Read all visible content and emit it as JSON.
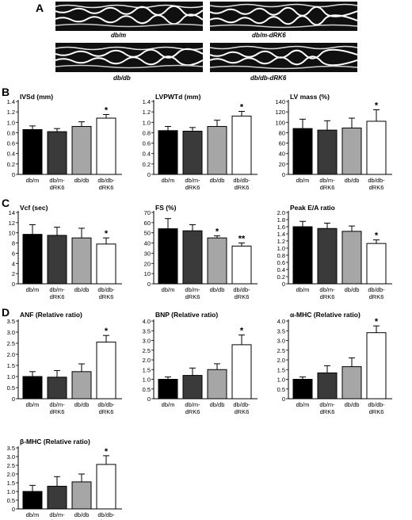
{
  "panel_labels": {
    "a": "A",
    "b": "B",
    "c": "C",
    "d": "D"
  },
  "echo_images": [
    {
      "caption": "db/m"
    },
    {
      "caption": "db/m-dRK6"
    },
    {
      "caption": "db/db"
    },
    {
      "caption": "db/db-dRK6"
    }
  ],
  "colors": {
    "db/m": "#000000",
    "db/m-dRK6": "#3a3a3a",
    "db/db": "#a6a6a6",
    "db/db-dRK6": "#ffffff"
  },
  "chart_data": [
    {
      "panel": "B",
      "type": "bar",
      "title": "IVSd (mm)",
      "categories": [
        [
          "db/m"
        ],
        [
          "db/m-",
          "dRK6"
        ],
        [
          "db/db"
        ],
        [
          "db/db-",
          "dRK6"
        ]
      ],
      "values": [
        0.86,
        0.82,
        0.92,
        1.08
      ],
      "errors": [
        0.07,
        0.06,
        0.09,
        0.07
      ],
      "significance": [
        "",
        "",
        "",
        "*"
      ],
      "yticks": [
        "0",
        "0.2",
        "0.4",
        "0.6",
        "0.8",
        "1.0",
        "1.2",
        "1.4"
      ],
      "ylim": [
        0,
        1.4
      ]
    },
    {
      "panel": "B",
      "type": "bar",
      "title": "LVPWTd (mm)",
      "categories": [
        [
          "db/m"
        ],
        [
          "db/m-",
          "dRK6"
        ],
        [
          "db/db"
        ],
        [
          "db/db-",
          "dRK6"
        ]
      ],
      "values": [
        0.84,
        0.83,
        0.92,
        1.12
      ],
      "errors": [
        0.08,
        0.07,
        0.12,
        0.09
      ],
      "significance": [
        "",
        "",
        "",
        "*"
      ],
      "yticks": [
        "0",
        "0.2",
        "0.4",
        "0.6",
        "0.8",
        "1.0",
        "1.2",
        "1.4"
      ],
      "ylim": [
        0,
        1.4
      ]
    },
    {
      "panel": "B",
      "type": "bar",
      "title": "LV mass (%)",
      "categories": [
        [
          "db/m"
        ],
        [
          "db/m-",
          "dRK6"
        ],
        [
          "db/db"
        ],
        [
          "db/db-",
          "dRK6"
        ]
      ],
      "values": [
        88,
        85,
        89,
        102
      ],
      "errors": [
        18,
        18,
        19,
        22
      ],
      "significance": [
        "",
        "",
        "",
        "*"
      ],
      "yticks": [
        "0",
        "20",
        "40",
        "60",
        "80",
        "100",
        "120",
        "140"
      ],
      "ylim": [
        0,
        140
      ]
    },
    {
      "panel": "C",
      "type": "bar",
      "title": "Vcf (sec)",
      "categories": [
        [
          "db/m"
        ],
        [
          "db/m-",
          "dRK6"
        ],
        [
          "db/db"
        ],
        [
          "db/db-",
          "dRK6"
        ]
      ],
      "values": [
        9.7,
        9.5,
        9.0,
        7.8
      ],
      "errors": [
        1.9,
        1.6,
        1.9,
        1.2
      ],
      "significance": [
        "",
        "",
        "",
        "*"
      ],
      "yticks": [
        "0",
        "2",
        "4",
        "6",
        "8",
        "10",
        "12",
        "14"
      ],
      "ylim": [
        0,
        14
      ]
    },
    {
      "panel": "C",
      "type": "bar",
      "title": "FS (%)",
      "categories": [
        [
          "db/m"
        ],
        [
          "db/m-",
          "dRK6"
        ],
        [
          "db/db"
        ],
        [
          "db/db-",
          "dRK6"
        ]
      ],
      "values": [
        54,
        52,
        45,
        37
      ],
      "errors": [
        10,
        6,
        2,
        3
      ],
      "significance": [
        "",
        "",
        "*",
        "**"
      ],
      "yticks": [
        "0",
        "10",
        "20",
        "30",
        "40",
        "50",
        "60",
        "70"
      ],
      "ylim": [
        0,
        70
      ]
    },
    {
      "panel": "C",
      "type": "bar",
      "title": "Peak E/A ratio",
      "categories": [
        [
          "db/m"
        ],
        [
          "db/m-",
          "dRK6"
        ],
        [
          "db/db"
        ],
        [
          "db/db-",
          "dRK6"
        ]
      ],
      "values": [
        1.6,
        1.55,
        1.47,
        1.13
      ],
      "errors": [
        0.15,
        0.15,
        0.15,
        0.1
      ],
      "significance": [
        "",
        "",
        "",
        "*"
      ],
      "yticks": [
        "0",
        "0.2",
        "0.4",
        "0.6",
        "0.8",
        "1.0",
        "1.2",
        "1.4",
        "1.6",
        "1.8",
        "2.0"
      ],
      "ylim": [
        0,
        2.0
      ]
    },
    {
      "panel": "D",
      "type": "bar",
      "title": "ANF (Relative ratio)",
      "categories": [
        [
          "db/m"
        ],
        [
          "db/m-",
          "dRK6"
        ],
        [
          "db/db"
        ],
        [
          "db/db-",
          "dRK6"
        ]
      ],
      "values": [
        1.0,
        0.97,
        1.22,
        2.55
      ],
      "errors": [
        0.22,
        0.3,
        0.35,
        0.3
      ],
      "significance": [
        "",
        "",
        "",
        "*"
      ],
      "yticks": [
        "0",
        "0.5",
        "1.0",
        "1.5",
        "2.0",
        "2.5",
        "3.0",
        "3.5"
      ],
      "ylim": [
        0,
        3.5
      ]
    },
    {
      "panel": "D",
      "type": "bar",
      "title": "BNP (Relative ratio)",
      "categories": [
        [
          "db/m"
        ],
        [
          "db/m-",
          "dRK6"
        ],
        [
          "db/db"
        ],
        [
          "db/db-",
          "dRK6"
        ]
      ],
      "values": [
        1.0,
        1.2,
        1.5,
        2.78
      ],
      "errors": [
        0.12,
        0.38,
        0.3,
        0.5
      ],
      "significance": [
        "",
        "",
        "",
        "*"
      ],
      "yticks": [
        "0",
        "0.5",
        "1.0",
        "1.5",
        "2.0",
        "2.5",
        "3.0",
        "3.5",
        "4.0"
      ],
      "ylim": [
        0,
        4.0
      ]
    },
    {
      "panel": "D",
      "type": "bar",
      "title": "α-MHC (Relative ratio)",
      "categories": [
        [
          "db/m"
        ],
        [
          "db/m-",
          "dRK6"
        ],
        [
          "db/db"
        ],
        [
          "db/db-",
          "dRK6"
        ]
      ],
      "values": [
        1.0,
        1.33,
        1.65,
        3.4
      ],
      "errors": [
        0.12,
        0.37,
        0.45,
        0.35
      ],
      "significance": [
        "",
        "",
        "",
        "*"
      ],
      "yticks": [
        "0",
        "0.5",
        "1.0",
        "1.5",
        "2.0",
        "2.5",
        "3.0",
        "3.5",
        "4.0"
      ],
      "ylim": [
        0,
        4.0
      ]
    },
    {
      "panel": "D",
      "type": "bar",
      "title": "β-MHC (Relative ratio)",
      "categories": [
        [
          "db/m"
        ],
        [
          "db/m-",
          "dRK6"
        ],
        [
          "db/db"
        ],
        [
          "db/db-",
          "dRK6"
        ]
      ],
      "values": [
        1.0,
        1.3,
        1.55,
        2.55
      ],
      "errors": [
        0.35,
        0.55,
        0.45,
        0.5
      ],
      "significance": [
        "",
        "",
        "",
        "*"
      ],
      "yticks": [
        "0",
        "0.5",
        "1.0",
        "1.5",
        "2.0",
        "2.5",
        "3.0",
        "3.5"
      ],
      "ylim": [
        0,
        3.5
      ]
    }
  ]
}
